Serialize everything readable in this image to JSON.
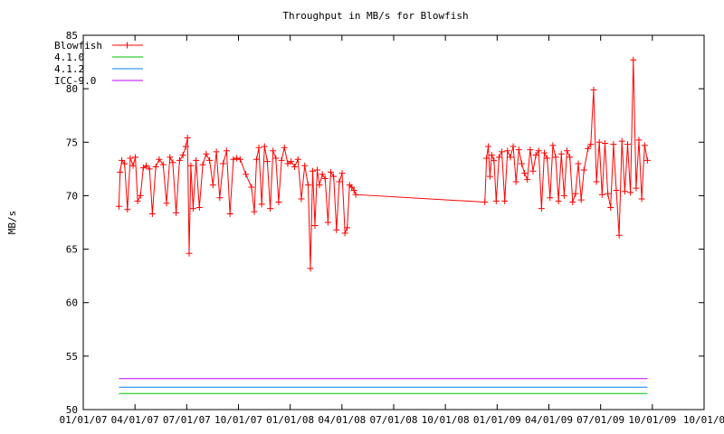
{
  "chart_data": {
    "type": "line",
    "title": "Throughput in MB/s for Blowfish",
    "xlabel": "",
    "ylabel": "MB/s",
    "xlim": [
      "2007-01-01",
      "2010-01-01"
    ],
    "ylim": [
      50,
      85
    ],
    "x_ticks": [
      "01/01/07",
      "04/01/07",
      "07/01/07",
      "10/01/07",
      "01/01/08",
      "04/01/08",
      "07/01/08",
      "10/01/08",
      "01/01/09",
      "04/01/09",
      "07/01/09",
      "10/01/09"
    ],
    "y_ticks": [
      50,
      55,
      60,
      65,
      70,
      75,
      80,
      85
    ],
    "grid": false,
    "legend": "top-left",
    "series": [
      {
        "name": "Blowfish",
        "color": "#ff0000",
        "marker": "plus",
        "x": [
          "2007-03-05",
          "2007-03-07",
          "2007-03-10",
          "2007-03-15",
          "2007-03-20",
          "2007-03-25",
          "2007-03-30",
          "2007-04-03",
          "2007-04-07",
          "2007-04-12",
          "2007-04-17",
          "2007-04-22",
          "2007-04-28",
          "2007-05-03",
          "2007-05-09",
          "2007-05-15",
          "2007-05-22",
          "2007-05-28",
          "2007-06-03",
          "2007-06-08",
          "2007-06-14",
          "2007-06-20",
          "2007-06-26",
          "2007-07-01",
          "2007-07-04",
          "2007-07-07",
          "2007-07-10",
          "2007-07-14",
          "2007-07-19",
          "2007-07-25",
          "2007-07-31",
          "2007-08-06",
          "2007-08-12",
          "2007-08-18",
          "2007-08-24",
          "2007-08-30",
          "2007-09-05",
          "2007-09-11",
          "2007-09-17",
          "2007-09-23",
          "2007-09-29",
          "2007-10-05",
          "2007-10-15",
          "2007-10-25",
          "2007-10-30",
          "2007-11-03",
          "2007-11-07",
          "2007-11-12",
          "2007-11-17",
          "2007-11-22",
          "2007-11-27",
          "2007-12-02",
          "2007-12-07",
          "2007-12-12",
          "2007-12-17",
          "2007-12-22",
          "2007-12-28",
          "2008-01-03",
          "2008-01-09",
          "2008-01-15",
          "2008-01-21",
          "2008-01-27",
          "2008-02-02",
          "2008-02-06",
          "2008-02-10",
          "2008-02-14",
          "2008-02-18",
          "2008-02-22",
          "2008-02-27",
          "2008-03-03",
          "2008-03-08",
          "2008-03-13",
          "2008-03-18",
          "2008-03-23",
          "2008-03-28",
          "2008-04-02",
          "2008-04-07",
          "2008-04-11",
          "2008-04-15",
          "2008-04-19",
          "2008-04-23",
          "2008-04-26",
          "2008-12-10",
          "2008-12-13",
          "2008-12-16",
          "2008-12-19",
          "2008-12-22",
          "2008-12-26",
          "2008-12-30",
          "2009-01-04",
          "2009-01-09",
          "2009-01-14",
          "2009-01-19",
          "2009-01-24",
          "2009-01-29",
          "2009-02-03",
          "2009-02-08",
          "2009-02-13",
          "2009-02-18",
          "2009-02-23",
          "2009-02-28",
          "2009-03-05",
          "2009-03-10",
          "2009-03-15",
          "2009-03-20",
          "2009-03-25",
          "2009-03-30",
          "2009-04-04",
          "2009-04-09",
          "2009-04-14",
          "2009-04-19",
          "2009-04-24",
          "2009-04-29",
          "2009-05-04",
          "2009-05-09",
          "2009-05-14",
          "2009-05-19",
          "2009-05-24",
          "2009-05-29",
          "2009-06-03",
          "2009-06-10",
          "2009-06-15",
          "2009-06-20",
          "2009-06-25",
          "2009-06-30",
          "2009-07-05",
          "2009-07-10",
          "2009-07-15",
          "2009-07-20",
          "2009-07-25",
          "2009-07-30",
          "2009-08-04",
          "2009-08-09",
          "2009-08-14",
          "2009-08-19",
          "2009-08-24",
          "2009-08-29",
          "2009-09-03",
          "2009-09-08",
          "2009-09-13",
          "2009-09-18",
          "2009-09-23"
        ],
        "y": [
          69.0,
          72.2,
          73.3,
          73.0,
          68.7,
          73.5,
          72.8,
          73.6,
          69.5,
          70.0,
          72.6,
          72.8,
          72.5,
          68.3,
          72.7,
          73.4,
          72.9,
          69.3,
          73.6,
          73.1,
          68.4,
          73.3,
          73.8,
          74.6,
          75.4,
          64.6,
          72.8,
          68.8,
          73.3,
          68.9,
          72.9,
          73.9,
          73.3,
          71.0,
          74.1,
          69.8,
          73.0,
          74.2,
          68.3,
          73.4,
          73.5,
          73.4,
          72.0,
          70.8,
          68.5,
          73.4,
          74.5,
          69.2,
          74.6,
          73.2,
          68.8,
          74.2,
          73.5,
          69.4,
          73.3,
          74.5,
          73.0,
          73.2,
          72.7,
          73.4,
          69.7,
          72.8,
          71.0,
          63.2,
          72.3,
          67.2,
          72.4,
          71.0,
          72.0,
          71.6,
          67.5,
          72.2,
          71.8,
          66.8,
          71.3,
          72.1,
          66.5,
          67.0,
          71.0,
          70.8,
          70.5,
          70.1,
          69.4,
          73.5,
          74.6,
          71.8,
          73.8,
          73.3,
          69.5,
          73.6,
          74.1,
          69.5,
          74.2,
          73.6,
          74.6,
          71.3,
          74.3,
          73.0,
          72.1,
          71.5,
          74.3,
          72.3,
          73.8,
          74.2,
          68.8,
          74.0,
          73.5,
          69.8,
          74.7,
          73.6,
          69.5,
          73.9,
          70.0,
          74.2,
          73.6,
          69.4,
          70.2,
          73.0,
          69.6,
          72.4,
          74.4,
          74.8,
          79.9,
          71.3,
          75.0,
          70.1,
          74.9,
          70.2,
          68.9,
          74.8,
          70.5,
          66.3,
          75.1,
          70.4,
          74.8,
          70.3,
          82.7,
          70.7,
          75.2,
          69.7,
          74.7,
          73.3
        ]
      },
      {
        "name": "4.1.0",
        "color": "#00c000",
        "marker": "none",
        "x": [
          "2007-03-05",
          "2009-09-23"
        ],
        "y": [
          51.5,
          51.5
        ]
      },
      {
        "name": "4.1.2",
        "color": "#0080ff",
        "marker": "none",
        "x": [
          "2007-03-05",
          "2009-09-23"
        ],
        "y": [
          52.1,
          52.1
        ]
      },
      {
        "name": "ICC-9.0",
        "color": "#c000ff",
        "marker": "none",
        "x": [
          "2007-03-05",
          "2009-09-23"
        ],
        "y": [
          52.9,
          52.9
        ]
      }
    ]
  }
}
